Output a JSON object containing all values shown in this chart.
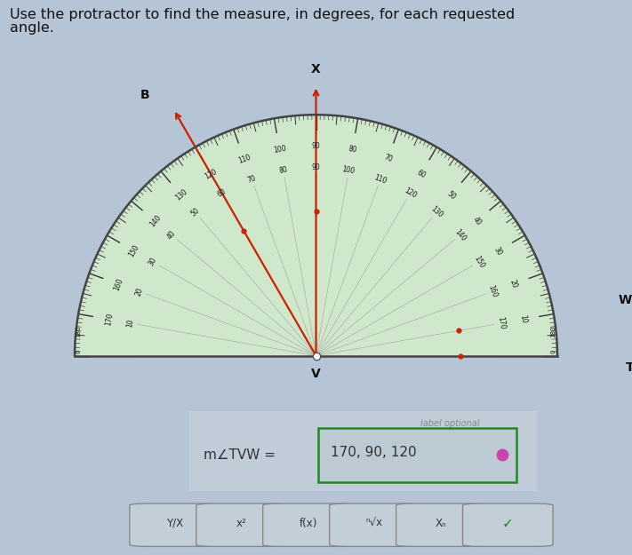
{
  "title_line1": "Use the protractor to find the measure, in degrees, for each requested",
  "title_line2": "angle.",
  "title_fontsize": 11.5,
  "bg_color": "#b5c5d5",
  "ray_color": "#cc2200",
  "protractor_face_color": "#cfe8cc",
  "answer_box_color": "#228822",
  "dot_color": "#cc44aa",
  "ray_angles_deg": [
    120,
    90,
    10,
    0
  ],
  "ray_labels": [
    "B",
    "X",
    "W",
    "T"
  ],
  "vertex_label": "V",
  "label_optional_text": "label optional",
  "answer_prefix": "m∠TVW = ",
  "answer_value": "170, 90, 120",
  "toolbar_buttons": [
    "Y/X",
    "x²",
    "f(x)",
    "ⁿ√x",
    "Xₙ"
  ]
}
